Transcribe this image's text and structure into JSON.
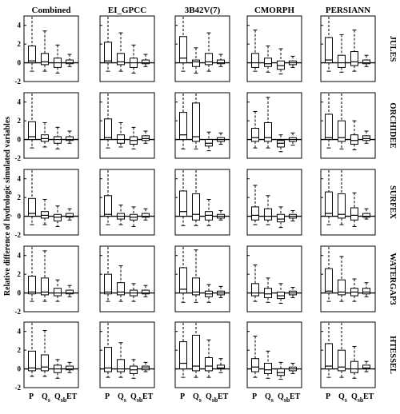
{
  "figure": {
    "ylabel": "Relative difference of hydrologic simulated variables",
    "y_tick_labels": [
      "4",
      "2",
      "0",
      "-2"
    ]
  },
  "chart_data": {
    "type": "boxplot",
    "ylabel": "Relative difference of hydrologic simulated variables",
    "ylim": [
      -2,
      5
    ],
    "yticks": [
      4,
      2,
      0,
      -2
    ],
    "columns": [
      "Combined",
      "EI_GPCC",
      "3B42V(7)",
      "CMORPH",
      "PERSIANN"
    ],
    "rows": [
      "JULES",
      "ORCHIDEE",
      "SURFEX",
      "WATERGAP3",
      "HTESSEL"
    ],
    "variables": [
      {
        "main": "P",
        "sub": ""
      },
      {
        "main": "Q",
        "sub": "s"
      },
      {
        "main": "Q",
        "sub": "sb"
      },
      {
        "main": "ET",
        "sub": ""
      }
    ],
    "stats_order": [
      "whisker_low",
      "q1",
      "median",
      "q3",
      "whisker_high"
    ],
    "panels": [
      {
        "row": "JULES",
        "column": "Combined",
        "boxes": [
          [
            -0.9,
            0.0,
            0.2,
            1.8,
            5.0
          ],
          [
            -0.9,
            -0.2,
            0.1,
            1.0,
            3.4
          ],
          [
            -1.1,
            -0.5,
            0.0,
            0.5,
            1.9
          ],
          [
            -0.4,
            -0.1,
            0.0,
            0.3,
            0.9
          ]
        ]
      },
      {
        "row": "JULES",
        "column": "EI_GPCC",
        "boxes": [
          [
            -0.9,
            0.0,
            0.2,
            2.2,
            5.0
          ],
          [
            -0.9,
            -0.2,
            0.1,
            1.0,
            3.2
          ],
          [
            -1.1,
            -0.5,
            0.0,
            0.5,
            1.9
          ],
          [
            -0.4,
            -0.1,
            0.0,
            0.3,
            0.9
          ]
        ]
      },
      {
        "row": "JULES",
        "column": "3B42V(7)",
        "boxes": [
          [
            -0.9,
            0.0,
            0.5,
            2.8,
            5.0
          ],
          [
            -1.1,
            -0.4,
            0.1,
            0.3,
            1.6
          ],
          [
            -0.9,
            -0.2,
            0.1,
            1.0,
            3.2
          ],
          [
            -0.4,
            -0.1,
            0.0,
            0.3,
            0.9
          ]
        ]
      },
      {
        "row": "JULES",
        "column": "CMORPH",
        "boxes": [
          [
            -0.9,
            -0.5,
            0.0,
            1.0,
            3.5
          ],
          [
            -1.0,
            -0.4,
            -0.1,
            0.5,
            1.8
          ],
          [
            -1.2,
            -0.7,
            -0.3,
            0.2,
            1.5
          ],
          [
            -0.5,
            -0.2,
            0.0,
            0.2,
            0.7
          ]
        ]
      },
      {
        "row": "JULES",
        "column": "PERSIANN",
        "boxes": [
          [
            -0.9,
            0.0,
            0.3,
            2.7,
            5.0
          ],
          [
            -1.0,
            -0.5,
            0.0,
            0.8,
            3.0
          ],
          [
            -0.9,
            -0.3,
            0.1,
            1.2,
            3.5
          ],
          [
            -0.4,
            -0.1,
            0.0,
            0.3,
            0.8
          ]
        ]
      },
      {
        "row": "ORCHIDEE",
        "column": "Combined",
        "boxes": [
          [
            -0.9,
            0.0,
            0.3,
            1.9,
            5.0
          ],
          [
            -0.8,
            -0.2,
            0.1,
            0.5,
            1.8
          ],
          [
            -1.0,
            -0.4,
            0.0,
            0.3,
            1.3
          ],
          [
            -0.4,
            -0.1,
            0.0,
            0.3,
            0.9
          ]
        ]
      },
      {
        "row": "ORCHIDEE",
        "column": "EI_GPCC",
        "boxes": [
          [
            -0.9,
            0.0,
            0.2,
            2.2,
            5.0
          ],
          [
            -0.8,
            -0.4,
            0.0,
            0.5,
            1.8
          ],
          [
            -1.0,
            -0.5,
            -0.1,
            0.3,
            1.3
          ],
          [
            -0.4,
            -0.1,
            0.1,
            0.4,
            0.9
          ]
        ]
      },
      {
        "row": "ORCHIDEE",
        "column": "3B42V(7)",
        "boxes": [
          [
            -1.0,
            0.0,
            0.5,
            2.9,
            5.0
          ],
          [
            -1.0,
            -0.2,
            0.3,
            3.9,
            5.0
          ],
          [
            -1.2,
            -0.7,
            -0.4,
            0.0,
            0.8
          ],
          [
            -0.5,
            -0.2,
            0.0,
            0.2,
            0.7
          ]
        ]
      },
      {
        "row": "ORCHIDEE",
        "column": "CMORPH",
        "boxes": [
          [
            -0.9,
            -0.2,
            0.2,
            1.2,
            3.0
          ],
          [
            -0.9,
            -0.2,
            0.2,
            1.8,
            4.5
          ],
          [
            -1.3,
            -0.8,
            -0.4,
            -0.1,
            0.5
          ],
          [
            -0.6,
            -0.2,
            0.0,
            0.2,
            0.7
          ]
        ]
      },
      {
        "row": "ORCHIDEE",
        "column": "PERSIANN",
        "boxes": [
          [
            -0.9,
            0.0,
            0.2,
            2.7,
            5.0
          ],
          [
            -1.0,
            -0.2,
            0.2,
            2.0,
            5.0
          ],
          [
            -1.1,
            -0.5,
            -0.1,
            0.5,
            2.0
          ],
          [
            -0.4,
            -0.1,
            0.1,
            0.4,
            0.9
          ]
        ]
      },
      {
        "row": "SURFEX",
        "column": "Combined",
        "boxes": [
          [
            -0.9,
            0.0,
            0.3,
            1.9,
            5.0
          ],
          [
            -0.9,
            -0.2,
            0.1,
            0.5,
            1.8
          ],
          [
            -1.1,
            -0.5,
            -0.1,
            0.2,
            1.1
          ],
          [
            -0.4,
            -0.1,
            0.0,
            0.3,
            0.8
          ]
        ]
      },
      {
        "row": "SURFEX",
        "column": "EI_GPCC",
        "boxes": [
          [
            -0.9,
            0.0,
            0.2,
            2.2,
            5.0
          ],
          [
            -0.9,
            -0.3,
            0.0,
            0.3,
            1.2
          ],
          [
            -1.1,
            -0.4,
            -0.1,
            0.2,
            1.0
          ],
          [
            -0.4,
            -0.1,
            0.0,
            0.3,
            0.8
          ]
        ]
      },
      {
        "row": "SURFEX",
        "column": "3B42V(7)",
        "boxes": [
          [
            -1.0,
            0.0,
            0.5,
            2.7,
            5.0
          ],
          [
            -1.0,
            -0.4,
            0.2,
            2.4,
            5.0
          ],
          [
            -1.0,
            -0.4,
            0.1,
            0.5,
            1.8
          ],
          [
            -0.4,
            -0.2,
            0.0,
            0.2,
            0.6
          ]
        ]
      },
      {
        "row": "SURFEX",
        "column": "CMORPH",
        "boxes": [
          [
            -0.9,
            -0.4,
            0.1,
            1.0,
            3.3
          ],
          [
            -0.9,
            -0.4,
            0.0,
            0.8,
            2.2
          ],
          [
            -1.2,
            -0.6,
            -0.3,
            0.2,
            1.0
          ],
          [
            -0.5,
            -0.2,
            0.0,
            0.2,
            0.6
          ]
        ]
      },
      {
        "row": "SURFEX",
        "column": "PERSIANN",
        "boxes": [
          [
            -0.9,
            0.0,
            0.3,
            2.6,
            5.0
          ],
          [
            -0.9,
            -0.2,
            0.2,
            2.4,
            5.0
          ],
          [
            -1.1,
            -0.4,
            0.1,
            0.9,
            2.5
          ],
          [
            -0.3,
            -0.1,
            0.0,
            0.3,
            0.8
          ]
        ]
      },
      {
        "row": "WATERGAP3",
        "column": "Combined",
        "boxes": [
          [
            -0.9,
            -0.1,
            0.1,
            1.8,
            5.0
          ],
          [
            -0.9,
            -0.2,
            0.1,
            1.6,
            4.5
          ],
          [
            -0.9,
            -0.3,
            0.0,
            0.5,
            1.4
          ],
          [
            -0.4,
            -0.1,
            0.0,
            0.3,
            0.8
          ]
        ]
      },
      {
        "row": "WATERGAP3",
        "column": "EI_GPCC",
        "boxes": [
          [
            -0.9,
            -0.1,
            0.1,
            2.0,
            5.0
          ],
          [
            -0.9,
            -0.2,
            0.1,
            1.1,
            2.9
          ],
          [
            -0.9,
            -0.3,
            0.0,
            0.3,
            1.0
          ],
          [
            -0.4,
            -0.1,
            0.0,
            0.3,
            0.8
          ]
        ]
      },
      {
        "row": "WATERGAP3",
        "column": "3B42V(7)",
        "boxes": [
          [
            -1.0,
            0.0,
            0.4,
            2.7,
            5.0
          ],
          [
            -1.0,
            -0.2,
            0.1,
            1.6,
            4.6
          ],
          [
            -1.0,
            -0.4,
            -0.1,
            0.2,
            0.9
          ],
          [
            -0.5,
            -0.2,
            0.0,
            0.2,
            0.7
          ]
        ]
      },
      {
        "row": "WATERGAP3",
        "column": "CMORPH",
        "boxes": [
          [
            -0.9,
            -0.3,
            0.0,
            1.0,
            3.0
          ],
          [
            -1.0,
            -0.5,
            -0.1,
            0.5,
            1.6
          ],
          [
            -1.1,
            -0.6,
            -0.3,
            0.1,
            1.0
          ],
          [
            -0.5,
            -0.2,
            0.0,
            0.2,
            0.6
          ]
        ]
      },
      {
        "row": "WATERGAP3",
        "column": "PERSIANN",
        "boxes": [
          [
            -0.9,
            0.0,
            0.2,
            2.6,
            5.0
          ],
          [
            -0.9,
            -0.2,
            0.1,
            1.4,
            3.9
          ],
          [
            -0.9,
            -0.3,
            0.1,
            0.5,
            1.5
          ],
          [
            -0.4,
            -0.1,
            0.1,
            0.5,
            1.1
          ]
        ]
      },
      {
        "row": "HTESSEL",
        "column": "Combined",
        "boxes": [
          [
            -0.8,
            -0.2,
            0.1,
            1.9,
            5.0
          ],
          [
            -0.8,
            -0.2,
            0.2,
            1.5,
            4.1
          ],
          [
            -1.0,
            -0.4,
            0.0,
            0.4,
            1.0
          ],
          [
            -0.4,
            -0.1,
            0.0,
            0.3,
            0.7
          ]
        ]
      },
      {
        "row": "HTESSEL",
        "column": "EI_GPCC",
        "boxes": [
          [
            -0.9,
            -0.3,
            0.1,
            2.3,
            5.0
          ],
          [
            -0.9,
            -0.3,
            0.0,
            1.0,
            2.8
          ],
          [
            -1.0,
            -0.5,
            -0.1,
            0.3,
            1.0
          ],
          [
            -0.3,
            -0.1,
            0.1,
            0.3,
            0.7
          ]
        ]
      },
      {
        "row": "HTESSEL",
        "column": "3B42V(7)",
        "boxes": [
          [
            -0.9,
            0.0,
            0.6,
            2.9,
            5.0
          ],
          [
            -0.9,
            -0.2,
            0.3,
            3.6,
            5.0
          ],
          [
            -0.9,
            -0.2,
            0.3,
            1.2,
            3.1
          ],
          [
            -0.4,
            0.0,
            0.1,
            0.4,
            1.1
          ]
        ]
      },
      {
        "row": "HTESSEL",
        "column": "CMORPH",
        "boxes": [
          [
            -0.9,
            -0.3,
            0.2,
            1.1,
            3.5
          ],
          [
            -1.0,
            -0.5,
            -0.1,
            0.6,
            1.9
          ],
          [
            -1.1,
            -0.7,
            -0.4,
            0.0,
            0.7
          ],
          [
            -0.5,
            -0.2,
            0.0,
            0.2,
            0.6
          ]
        ]
      },
      {
        "row": "HTESSEL",
        "column": "PERSIANN",
        "boxes": [
          [
            -0.9,
            0.0,
            0.3,
            2.7,
            5.0
          ],
          [
            -0.9,
            -0.2,
            0.2,
            2.0,
            5.0
          ],
          [
            -1.0,
            -0.4,
            0.0,
            0.8,
            2.4
          ],
          [
            -0.3,
            0.0,
            0.1,
            0.4,
            0.8
          ]
        ]
      }
    ]
  }
}
